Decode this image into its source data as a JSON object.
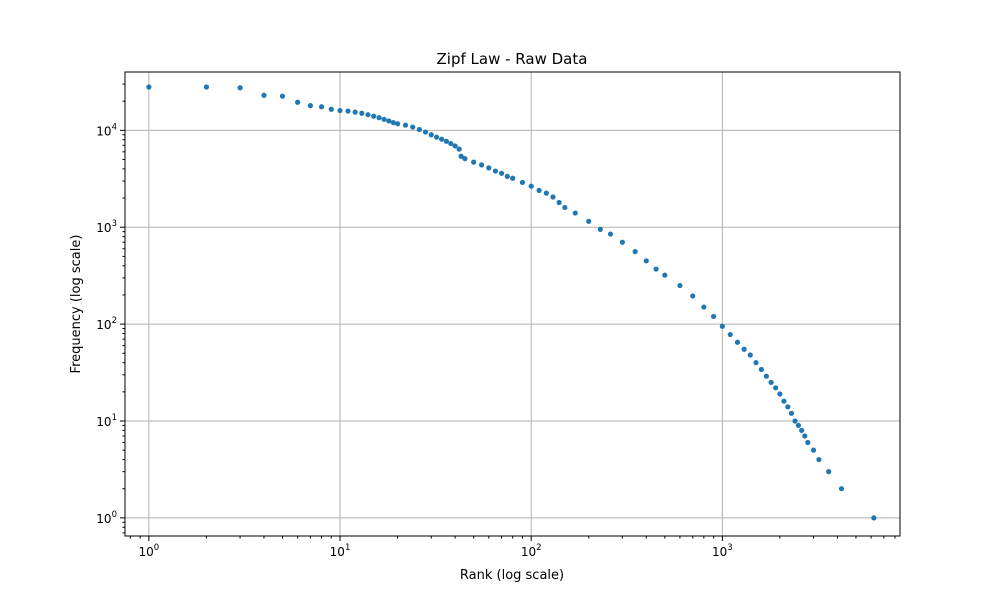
{
  "chart_data": {
    "type": "scatter",
    "title": "Zipf Law - Raw Data",
    "xlabel": "Rank (log scale)",
    "ylabel": "Frequency (log scale)",
    "x_scale": "log",
    "y_scale": "log",
    "xlim": [
      0.75,
      8500
    ],
    "ylim": [
      0.65,
      40000
    ],
    "grid": true,
    "marker_color": "#1f77b4",
    "x_ticks": [
      {
        "base": "10",
        "exp": "0",
        "value": 1
      },
      {
        "base": "10",
        "exp": "1",
        "value": 10
      },
      {
        "base": "10",
        "exp": "2",
        "value": 100
      },
      {
        "base": "10",
        "exp": "3",
        "value": 1000
      }
    ],
    "y_ticks": [
      {
        "base": "10",
        "exp": "0",
        "value": 1
      },
      {
        "base": "10",
        "exp": "1",
        "value": 10
      },
      {
        "base": "10",
        "exp": "2",
        "value": 100
      },
      {
        "base": "10",
        "exp": "3",
        "value": 1000
      },
      {
        "base": "10",
        "exp": "4",
        "value": 10000
      }
    ],
    "series": [
      {
        "points": [
          [
            1,
            28000
          ],
          [
            2,
            28000
          ],
          [
            3,
            27500
          ],
          [
            4,
            23000
          ],
          [
            5,
            22500
          ],
          [
            6,
            19500
          ],
          [
            7,
            18000
          ],
          [
            8,
            17500
          ],
          [
            9,
            16500
          ],
          [
            10,
            16000
          ],
          [
            11,
            15800
          ],
          [
            12,
            15400
          ],
          [
            13,
            15000
          ],
          [
            14,
            14500
          ],
          [
            15,
            14000
          ],
          [
            16,
            13500
          ],
          [
            17,
            13000
          ],
          [
            18,
            12500
          ],
          [
            19,
            12000
          ],
          [
            20,
            11700
          ],
          [
            22,
            11300
          ],
          [
            24,
            10800
          ],
          [
            26,
            10200
          ],
          [
            28,
            9600
          ],
          [
            30,
            9000
          ],
          [
            32,
            8500
          ],
          [
            34,
            8100
          ],
          [
            36,
            7700
          ],
          [
            38,
            7300
          ],
          [
            40,
            6900
          ],
          [
            42,
            6400
          ],
          [
            43,
            5400
          ],
          [
            45,
            5100
          ],
          [
            50,
            4700
          ],
          [
            55,
            4400
          ],
          [
            60,
            4100
          ],
          [
            65,
            3800
          ],
          [
            70,
            3600
          ],
          [
            75,
            3350
          ],
          [
            80,
            3200
          ],
          [
            90,
            2900
          ],
          [
            100,
            2650
          ],
          [
            110,
            2400
          ],
          [
            120,
            2250
          ],
          [
            130,
            2050
          ],
          [
            140,
            1800
          ],
          [
            150,
            1600
          ],
          [
            170,
            1400
          ],
          [
            200,
            1150
          ],
          [
            230,
            950
          ],
          [
            260,
            850
          ],
          [
            300,
            700
          ],
          [
            350,
            560
          ],
          [
            400,
            450
          ],
          [
            450,
            370
          ],
          [
            500,
            320
          ],
          [
            600,
            250
          ],
          [
            700,
            195
          ],
          [
            800,
            150
          ],
          [
            900,
            120
          ],
          [
            1000,
            95
          ],
          [
            1100,
            78
          ],
          [
            1200,
            65
          ],
          [
            1300,
            55
          ],
          [
            1400,
            48
          ],
          [
            1500,
            40
          ],
          [
            1600,
            34
          ],
          [
            1700,
            29
          ],
          [
            1800,
            25
          ],
          [
            1900,
            22
          ],
          [
            2000,
            19
          ],
          [
            2100,
            16
          ],
          [
            2200,
            14
          ],
          [
            2300,
            12
          ],
          [
            2400,
            10
          ],
          [
            2500,
            9
          ],
          [
            2600,
            8
          ],
          [
            2700,
            7
          ],
          [
            2800,
            6
          ],
          [
            3000,
            5
          ],
          [
            3200,
            4
          ],
          [
            3600,
            3
          ],
          [
            4200,
            2
          ],
          [
            6200,
            1
          ]
        ]
      }
    ]
  }
}
